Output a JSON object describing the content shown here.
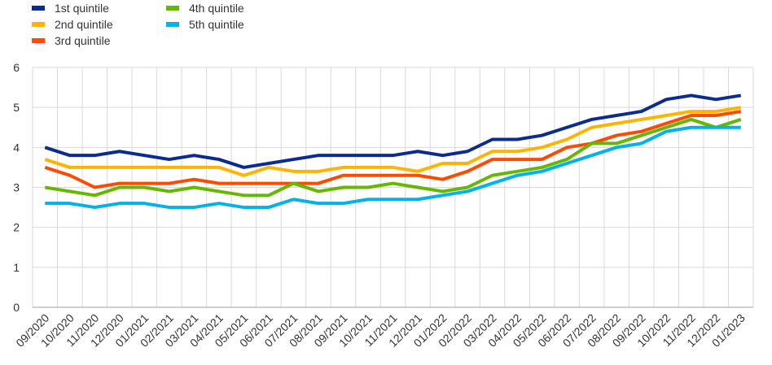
{
  "chart_data": {
    "type": "line",
    "title": "",
    "xlabel": "",
    "ylabel": "",
    "ylim": [
      0,
      6
    ],
    "yticks": [
      0,
      1,
      2,
      3,
      4,
      5,
      6
    ],
    "grid": "both",
    "legend_position": "top-left",
    "x": [
      "09/2020",
      "10/2020",
      "11/2020",
      "12/2020",
      "01/2021",
      "02/2021",
      "03/2021",
      "04/2021",
      "05/2021",
      "06/2021",
      "07/2021",
      "08/2021",
      "09/2021",
      "10/2021",
      "11/2021",
      "12/2021",
      "01/2022",
      "02/2022",
      "03/2022",
      "04/2022",
      "05/2022",
      "06/2022",
      "07/2022",
      "08/2022",
      "09/2022",
      "10/2022",
      "11/2022",
      "12/2022",
      "01/2023"
    ],
    "series": [
      {
        "name": "1st quintile",
        "color": "#0b2b8f",
        "values": [
          4.0,
          3.8,
          3.8,
          3.9,
          3.8,
          3.7,
          3.8,
          3.7,
          3.5,
          3.6,
          3.7,
          3.8,
          3.8,
          3.8,
          3.8,
          3.9,
          3.8,
          3.9,
          4.2,
          4.2,
          4.3,
          4.5,
          4.7,
          4.8,
          4.9,
          5.2,
          5.3,
          5.2,
          5.3
        ]
      },
      {
        "name": "2nd quintile",
        "color": "#ffb400",
        "values": [
          3.7,
          3.5,
          3.5,
          3.5,
          3.5,
          3.5,
          3.5,
          3.5,
          3.3,
          3.5,
          3.4,
          3.4,
          3.5,
          3.5,
          3.5,
          3.4,
          3.6,
          3.6,
          3.9,
          3.9,
          4.0,
          4.2,
          4.5,
          4.6,
          4.7,
          4.8,
          4.9,
          4.9,
          5.0
        ]
      },
      {
        "name": "3rd quintile",
        "color": "#ff4b00",
        "values": [
          3.5,
          3.3,
          3.0,
          3.1,
          3.1,
          3.1,
          3.2,
          3.1,
          3.1,
          3.1,
          3.1,
          3.1,
          3.3,
          3.3,
          3.3,
          3.3,
          3.2,
          3.4,
          3.7,
          3.7,
          3.7,
          4.0,
          4.1,
          4.3,
          4.4,
          4.6,
          4.8,
          4.8,
          4.9
        ]
      },
      {
        "name": "4th quintile",
        "color": "#65b800",
        "values": [
          3.0,
          2.9,
          2.8,
          3.0,
          3.0,
          2.9,
          3.0,
          2.9,
          2.8,
          2.8,
          3.1,
          2.9,
          3.0,
          3.0,
          3.1,
          3.0,
          2.9,
          3.0,
          3.3,
          3.4,
          3.5,
          3.7,
          4.1,
          4.1,
          4.3,
          4.5,
          4.7,
          4.5,
          4.7
        ]
      },
      {
        "name": "5th quintile",
        "color": "#00b1ea",
        "values": [
          2.6,
          2.6,
          2.5,
          2.6,
          2.6,
          2.5,
          2.5,
          2.6,
          2.5,
          2.5,
          2.7,
          2.6,
          2.6,
          2.7,
          2.7,
          2.7,
          2.8,
          2.9,
          3.1,
          3.3,
          3.4,
          3.6,
          3.8,
          4.0,
          4.1,
          4.4,
          4.5,
          4.5,
          4.5
        ]
      }
    ]
  }
}
